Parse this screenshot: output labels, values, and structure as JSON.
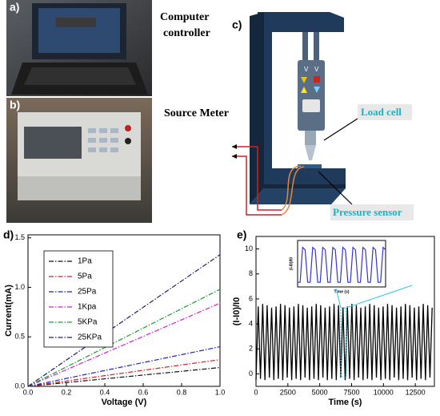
{
  "panels": [
    "a)",
    "b)",
    "c)",
    "d)",
    "e)"
  ],
  "captions": {
    "computer": [
      "Computer",
      "controller"
    ],
    "source_meter": "Source Meter",
    "load_cell": "Load cell",
    "pressure_sensor": "Pressure sensor"
  },
  "chart_data": [
    {
      "type": "line",
      "xlabel": "Voltage (V)",
      "ylabel": "Current(mA)",
      "x": [
        0,
        1
      ],
      "series": [
        {
          "name": "1Pa",
          "color": "#111111",
          "values": [
            0,
            0.19
          ]
        },
        {
          "name": "5Pa",
          "color": "#d62020",
          "values": [
            0,
            0.27
          ]
        },
        {
          "name": "25Pa",
          "color": "#2020c8",
          "values": [
            0,
            0.4
          ]
        },
        {
          "name": "1Kpa",
          "color": "#d020d0",
          "values": [
            0,
            0.84
          ]
        },
        {
          "name": "5KPa",
          "color": "#1a9a30",
          "values": [
            0,
            0.98
          ]
        },
        {
          "name": "25KPa",
          "color": "#1c1c6a",
          "values": [
            0,
            1.33
          ]
        }
      ],
      "xlim": [
        0,
        1
      ],
      "ylim": [
        0,
        1.53
      ],
      "xticks": [
        {
          "value": 0,
          "label": "0.0"
        },
        0.2,
        0.4,
        0.6,
        0.8,
        {
          "value": 1,
          "label": "1.0"
        }
      ],
      "yticks": [
        {
          "value": 0,
          "label": "0.0"
        },
        0.5,
        {
          "value": 1,
          "label": "1.0"
        },
        1.5
      ],
      "legend": "upper left"
    },
    {
      "type": "line",
      "xlabel": "Time (s)",
      "ylabel": "(I-I0)/I0",
      "x": [
        0,
        175,
        350,
        525,
        700,
        875,
        1050,
        1225,
        1400,
        1575,
        1750,
        1925,
        2100,
        2275,
        2450,
        2625,
        2800,
        2975,
        3150,
        3325,
        3500,
        3675,
        3850,
        4025,
        4200,
        4375,
        4550,
        4725,
        4900,
        5075,
        5250,
        5425,
        5600,
        5775,
        5950,
        6125,
        6300,
        6475,
        6650,
        6825,
        7000,
        7175,
        7350,
        7525,
        7700,
        7875,
        8050,
        8225,
        8400,
        8575,
        8750,
        8925,
        9100,
        9275,
        9450,
        9625,
        9800,
        9975,
        10150,
        10325,
        10500,
        10675,
        10850,
        11025,
        11200,
        11375,
        11550,
        11725,
        11900,
        12075,
        12250,
        12425,
        12600,
        12775,
        12950,
        13125,
        13300,
        13475,
        13650,
        13825
      ],
      "series": [
        {
          "color": "#000000",
          "values": [
            -0.5,
            5.4,
            -0.4,
            5.6,
            -0.5,
            5.5,
            -0.3,
            5.3,
            -0.5,
            5.4,
            -0.4,
            5.6,
            -0.5,
            5.5,
            -0.3,
            5.3,
            -0.5,
            5.4,
            -0.4,
            5.6,
            -0.5,
            5.5,
            -0.3,
            5.3,
            -0.5,
            5.4,
            -0.4,
            5.6,
            -0.5,
            5.5,
            -0.3,
            5.3,
            -0.5,
            5.4,
            -0.4,
            5.6,
            -0.5,
            5.5,
            -0.3,
            5.3,
            -0.5,
            5.4,
            -0.4,
            5.6,
            -0.5,
            5.5,
            -0.3,
            5.3,
            -0.5,
            5.4,
            -0.4,
            5.6,
            -0.5,
            5.5,
            -0.3,
            5.3,
            -0.5,
            5.4,
            -0.4,
            5.6,
            -0.5,
            5.5,
            -0.3,
            5.3,
            -0.5,
            5.4,
            -0.4,
            5.6,
            -0.5,
            5.5,
            -0.3,
            5.3,
            -0.5,
            5.4,
            -0.4,
            5.6,
            -0.5,
            5.5,
            -0.3,
            5.3
          ]
        }
      ],
      "xlim": [
        0,
        14000
      ],
      "ylim": [
        -1,
        11
      ],
      "xticks": [
        0,
        2500,
        5000,
        7500,
        10000,
        12500
      ],
      "yticks": [
        0,
        2,
        4,
        6,
        8,
        10
      ]
    },
    {
      "type": "line",
      "xlabel": "Time (s)",
      "ylabel": "(I-I0)/I0",
      "x": [
        0,
        1,
        2,
        3,
        4,
        5,
        6,
        7,
        8,
        9,
        10,
        11,
        12,
        13,
        14,
        15,
        16,
        17,
        18,
        19,
        20,
        21,
        22,
        23,
        24,
        25,
        26,
        27,
        28,
        29,
        30,
        31,
        32,
        33,
        34,
        35
      ],
      "series": [
        {
          "color": "#3434d0",
          "values": [
            0.1,
            0.1,
            0.85,
            0.8,
            0.1,
            0.1,
            0.85,
            0.8,
            0.1,
            0.1,
            0.85,
            0.8,
            0.1,
            0.1,
            0.85,
            0.8,
            0.1,
            0.1,
            0.85,
            0.8,
            0.1,
            0.1,
            0.85,
            0.8,
            0.1,
            0.1,
            0.85,
            0.8,
            0.1,
            0.1,
            0.85,
            0.8,
            0.1,
            0.1,
            0.85,
            0.8
          ]
        }
      ],
      "xlim": [
        0,
        35
      ],
      "ylim": [
        0,
        1
      ]
    }
  ]
}
